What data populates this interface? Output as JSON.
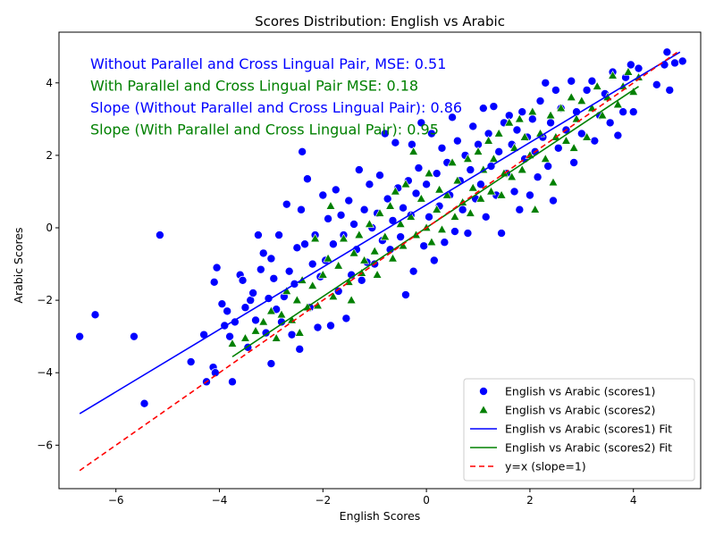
{
  "chart_data": {
    "type": "scatter",
    "title": "Scores Distribution: English vs Arabic",
    "xlabel": "English Scores",
    "ylabel": "Arabic Scores",
    "xlim": [
      -7.1,
      5.3
    ],
    "ylim": [
      -7.2,
      5.4
    ],
    "xticks": [
      -6,
      -4,
      -2,
      0,
      2,
      4
    ],
    "yticks": [
      -6,
      -4,
      -2,
      0,
      2,
      4
    ],
    "xtick_labels": [
      "−6",
      "−4",
      "−2",
      "0",
      "2",
      "4"
    ],
    "ytick_labels": [
      "−6",
      "−4",
      "−2",
      "0",
      "2",
      "4"
    ],
    "grid": false,
    "legend_position": "lower-right",
    "annotations": [
      {
        "text": "Without Parallel and Cross Lingual Pair, MSE: 0.51",
        "color": "#0000ff"
      },
      {
        "text": "With Parallel and Cross Lingual Pair MSE: 0.18",
        "color": "#008000"
      },
      {
        "text": "Slope (Without Parallel and Cross Lingual Pair): 0.86",
        "color": "#0000ff"
      },
      {
        "text": "Slope (With Parallel and Cross Lingual Pair): 0.95",
        "color": "#008000"
      }
    ],
    "series": [
      {
        "name": "English vs Arabic (scores1)",
        "kind": "scatter",
        "marker": "circle",
        "color": "#0000ff",
        "points": [
          [
            -6.7,
            -3.0
          ],
          [
            -6.4,
            -2.4
          ],
          [
            -5.65,
            -3.0
          ],
          [
            -5.45,
            -4.85
          ],
          [
            -5.15,
            -0.2
          ],
          [
            -4.55,
            -3.7
          ],
          [
            -4.3,
            -2.95
          ],
          [
            -4.25,
            -4.25
          ],
          [
            -4.12,
            -3.85
          ],
          [
            -4.08,
            -4.0
          ],
          [
            -4.1,
            -1.5
          ],
          [
            -4.05,
            -1.1
          ],
          [
            -3.95,
            -2.1
          ],
          [
            -3.9,
            -2.7
          ],
          [
            -3.85,
            -2.3
          ],
          [
            -3.8,
            -3.0
          ],
          [
            -3.75,
            -4.25
          ],
          [
            -3.7,
            -2.6
          ],
          [
            -3.6,
            -1.3
          ],
          [
            -3.55,
            -1.45
          ],
          [
            -3.5,
            -2.2
          ],
          [
            -3.45,
            -3.3
          ],
          [
            -3.4,
            -2.0
          ],
          [
            -3.35,
            -1.8
          ],
          [
            -3.3,
            -2.55
          ],
          [
            -3.25,
            -0.2
          ],
          [
            -3.2,
            -1.15
          ],
          [
            -3.15,
            -0.7
          ],
          [
            -3.1,
            -2.9
          ],
          [
            -3.05,
            -1.95
          ],
          [
            -3.0,
            -0.85
          ],
          [
            -3.0,
            -3.75
          ],
          [
            -2.95,
            -1.4
          ],
          [
            -2.9,
            -2.25
          ],
          [
            -2.85,
            -0.2
          ],
          [
            -2.8,
            -2.6
          ],
          [
            -2.75,
            -1.9
          ],
          [
            -2.7,
            0.65
          ],
          [
            -2.65,
            -1.2
          ],
          [
            -2.6,
            -2.95
          ],
          [
            -2.55,
            -1.55
          ],
          [
            -2.5,
            -0.55
          ],
          [
            -2.45,
            -3.35
          ],
          [
            -2.42,
            0.5
          ],
          [
            -2.4,
            2.1
          ],
          [
            -2.35,
            -0.45
          ],
          [
            -2.3,
            1.35
          ],
          [
            -2.25,
            -2.2
          ],
          [
            -2.2,
            -1.0
          ],
          [
            -2.15,
            -0.2
          ],
          [
            -2.1,
            -2.75
          ],
          [
            -2.05,
            -1.35
          ],
          [
            -2.0,
            0.9
          ],
          [
            -1.95,
            -0.9
          ],
          [
            -1.9,
            0.25
          ],
          [
            -1.85,
            -2.7
          ],
          [
            -1.8,
            -0.45
          ],
          [
            -1.75,
            1.05
          ],
          [
            -1.7,
            -1.75
          ],
          [
            -1.65,
            0.35
          ],
          [
            -1.6,
            -0.2
          ],
          [
            -1.55,
            -2.5
          ],
          [
            -1.5,
            0.75
          ],
          [
            -1.45,
            -1.3
          ],
          [
            -1.4,
            0.1
          ],
          [
            -1.35,
            -0.6
          ],
          [
            -1.3,
            1.6
          ],
          [
            -1.25,
            -1.45
          ],
          [
            -1.2,
            0.5
          ],
          [
            -1.15,
            -0.95
          ],
          [
            -1.1,
            1.2
          ],
          [
            -1.05,
            0.0
          ],
          [
            -1.0,
            -1.0
          ],
          [
            -0.95,
            0.4
          ],
          [
            -0.9,
            1.45
          ],
          [
            -0.85,
            -0.35
          ],
          [
            -0.8,
            2.6
          ],
          [
            -0.75,
            0.8
          ],
          [
            -0.7,
            -0.6
          ],
          [
            -0.65,
            0.2
          ],
          [
            -0.6,
            2.35
          ],
          [
            -0.55,
            1.1
          ],
          [
            -0.5,
            -0.25
          ],
          [
            -0.45,
            0.55
          ],
          [
            -0.4,
            -1.85
          ],
          [
            -0.35,
            1.3
          ],
          [
            -0.3,
            0.35
          ],
          [
            -0.28,
            2.3
          ],
          [
            -0.25,
            -1.2
          ],
          [
            -0.2,
            0.95
          ],
          [
            -0.15,
            1.65
          ],
          [
            -0.1,
            2.9
          ],
          [
            -0.05,
            -0.5
          ],
          [
            0.0,
            1.2
          ],
          [
            0.05,
            0.3
          ],
          [
            0.1,
            2.6
          ],
          [
            0.15,
            -0.9
          ],
          [
            0.2,
            1.5
          ],
          [
            0.25,
            0.6
          ],
          [
            0.3,
            2.2
          ],
          [
            0.35,
            -0.4
          ],
          [
            0.4,
            1.8
          ],
          [
            0.45,
            0.9
          ],
          [
            0.5,
            3.05
          ],
          [
            0.55,
            -0.1
          ],
          [
            0.6,
            2.4
          ],
          [
            0.65,
            1.3
          ],
          [
            0.7,
            0.5
          ],
          [
            0.75,
            2.0
          ],
          [
            0.8,
            -0.15
          ],
          [
            0.85,
            1.6
          ],
          [
            0.9,
            2.8
          ],
          [
            0.95,
            0.8
          ],
          [
            1.0,
            2.3
          ],
          [
            1.05,
            1.2
          ],
          [
            1.1,
            3.3
          ],
          [
            1.15,
            0.3
          ],
          [
            1.2,
            2.6
          ],
          [
            1.25,
            1.7
          ],
          [
            1.3,
            3.35
          ],
          [
            1.35,
            0.9
          ],
          [
            1.4,
            2.1
          ],
          [
            1.45,
            -0.15
          ],
          [
            1.5,
            2.9
          ],
          [
            1.55,
            1.5
          ],
          [
            1.6,
            3.1
          ],
          [
            1.65,
            2.3
          ],
          [
            1.7,
            1.0
          ],
          [
            1.75,
            2.7
          ],
          [
            1.8,
            0.5
          ],
          [
            1.85,
            3.2
          ],
          [
            1.9,
            1.9
          ],
          [
            1.95,
            2.5
          ],
          [
            2.0,
            0.9
          ],
          [
            2.05,
            3.0
          ],
          [
            2.1,
            2.1
          ],
          [
            2.15,
            1.4
          ],
          [
            2.2,
            3.5
          ],
          [
            2.25,
            2.5
          ],
          [
            2.3,
            4.0
          ],
          [
            2.35,
            1.7
          ],
          [
            2.4,
            2.9
          ],
          [
            2.45,
            0.75
          ],
          [
            2.5,
            3.8
          ],
          [
            2.55,
            2.2
          ],
          [
            2.6,
            3.3
          ],
          [
            2.7,
            2.7
          ],
          [
            2.8,
            4.05
          ],
          [
            2.85,
            1.8
          ],
          [
            2.9,
            3.2
          ],
          [
            3.0,
            2.6
          ],
          [
            3.1,
            3.8
          ],
          [
            3.2,
            4.05
          ],
          [
            3.25,
            2.4
          ],
          [
            3.35,
            3.1
          ],
          [
            3.45,
            3.7
          ],
          [
            3.55,
            2.9
          ],
          [
            3.6,
            4.3
          ],
          [
            3.7,
            2.55
          ],
          [
            3.8,
            3.2
          ],
          [
            3.85,
            4.15
          ],
          [
            3.95,
            4.5
          ],
          [
            4.0,
            3.2
          ],
          [
            4.1,
            4.4
          ],
          [
            4.45,
            3.95
          ],
          [
            4.6,
            4.5
          ],
          [
            4.65,
            4.85
          ],
          [
            4.7,
            3.8
          ],
          [
            4.8,
            4.55
          ],
          [
            4.95,
            4.6
          ]
        ]
      },
      {
        "name": "English vs Arabic (scores2)",
        "kind": "scatter",
        "marker": "triangle",
        "color": "#008000",
        "points": [
          [
            -3.75,
            -3.2
          ],
          [
            -3.5,
            -3.05
          ],
          [
            -3.3,
            -2.85
          ],
          [
            -3.15,
            -2.6
          ],
          [
            -3.0,
            -2.3
          ],
          [
            -2.9,
            -3.05
          ],
          [
            -2.8,
            -2.4
          ],
          [
            -2.7,
            -1.75
          ],
          [
            -2.6,
            -2.55
          ],
          [
            -2.5,
            -2.0
          ],
          [
            -2.45,
            -2.9
          ],
          [
            -2.4,
            -1.45
          ],
          [
            -2.3,
            -2.2
          ],
          [
            -2.2,
            -1.6
          ],
          [
            -2.15,
            -0.3
          ],
          [
            -2.1,
            -2.15
          ],
          [
            -2.0,
            -1.3
          ],
          [
            -1.9,
            -0.85
          ],
          [
            -1.85,
            0.6
          ],
          [
            -1.8,
            -1.9
          ],
          [
            -1.7,
            -1.05
          ],
          [
            -1.6,
            -0.3
          ],
          [
            -1.5,
            -1.5
          ],
          [
            -1.45,
            -2.0
          ],
          [
            -1.4,
            -0.7
          ],
          [
            -1.3,
            -0.2
          ],
          [
            -1.25,
            -1.25
          ],
          [
            -1.2,
            -0.9
          ],
          [
            -1.1,
            0.1
          ],
          [
            -1.0,
            -0.65
          ],
          [
            -0.95,
            -1.3
          ],
          [
            -0.9,
            0.4
          ],
          [
            -0.8,
            -0.25
          ],
          [
            -0.7,
            0.6
          ],
          [
            -0.65,
            -0.85
          ],
          [
            -0.6,
            1.0
          ],
          [
            -0.5,
            0.1
          ],
          [
            -0.45,
            -0.5
          ],
          [
            -0.4,
            1.2
          ],
          [
            -0.3,
            0.3
          ],
          [
            -0.25,
            2.1
          ],
          [
            -0.2,
            -0.2
          ],
          [
            -0.1,
            0.8
          ],
          [
            0.0,
            0.0
          ],
          [
            0.05,
            1.5
          ],
          [
            0.1,
            -0.4
          ],
          [
            0.2,
            0.5
          ],
          [
            0.25,
            1.05
          ],
          [
            0.3,
            -0.05
          ],
          [
            0.4,
            0.9
          ],
          [
            0.5,
            1.8
          ],
          [
            0.55,
            0.3
          ],
          [
            0.6,
            1.3
          ],
          [
            0.7,
            0.7
          ],
          [
            0.8,
            1.9
          ],
          [
            0.85,
            0.4
          ],
          [
            0.9,
            1.1
          ],
          [
            1.0,
            2.1
          ],
          [
            1.05,
            0.8
          ],
          [
            1.1,
            1.6
          ],
          [
            1.2,
            2.4
          ],
          [
            1.25,
            1.0
          ],
          [
            1.3,
            1.9
          ],
          [
            1.4,
            2.6
          ],
          [
            1.45,
            0.9
          ],
          [
            1.5,
            1.5
          ],
          [
            1.6,
            2.9
          ],
          [
            1.65,
            1.4
          ],
          [
            1.7,
            2.2
          ],
          [
            1.8,
            3.0
          ],
          [
            1.85,
            1.6
          ],
          [
            1.9,
            2.5
          ],
          [
            2.0,
            2.0
          ],
          [
            2.05,
            3.2
          ],
          [
            2.1,
            0.5
          ],
          [
            2.2,
            2.6
          ],
          [
            2.3,
            1.9
          ],
          [
            2.4,
            3.1
          ],
          [
            2.45,
            1.25
          ],
          [
            2.5,
            2.5
          ],
          [
            2.6,
            3.3
          ],
          [
            2.7,
            2.4
          ],
          [
            2.8,
            3.6
          ],
          [
            2.85,
            2.2
          ],
          [
            2.9,
            3.0
          ],
          [
            3.0,
            3.5
          ],
          [
            3.1,
            2.5
          ],
          [
            3.2,
            3.3
          ],
          [
            3.3,
            3.9
          ],
          [
            3.4,
            3.1
          ],
          [
            3.5,
            3.6
          ],
          [
            3.6,
            4.2
          ],
          [
            3.7,
            3.4
          ],
          [
            3.8,
            3.9
          ],
          [
            3.9,
            4.3
          ],
          [
            4.0,
            3.75
          ],
          [
            4.1,
            4.15
          ]
        ]
      },
      {
        "name": "English vs Arabic (scores1) Fit",
        "kind": "line",
        "color": "#0000ff",
        "x": [
          -6.7,
          4.9
        ],
        "y": [
          -5.13,
          4.85
        ]
      },
      {
        "name": "English vs Arabic (scores2) Fit",
        "kind": "line",
        "color": "#008000",
        "x": [
          -3.75,
          4.1
        ],
        "y": [
          -3.56,
          3.9
        ]
      },
      {
        "name": "y=x (slope=1)",
        "kind": "line",
        "style": "dashed",
        "color": "#ff0000",
        "x": [
          -6.7,
          4.9
        ],
        "y": [
          -6.7,
          4.9
        ]
      }
    ]
  }
}
